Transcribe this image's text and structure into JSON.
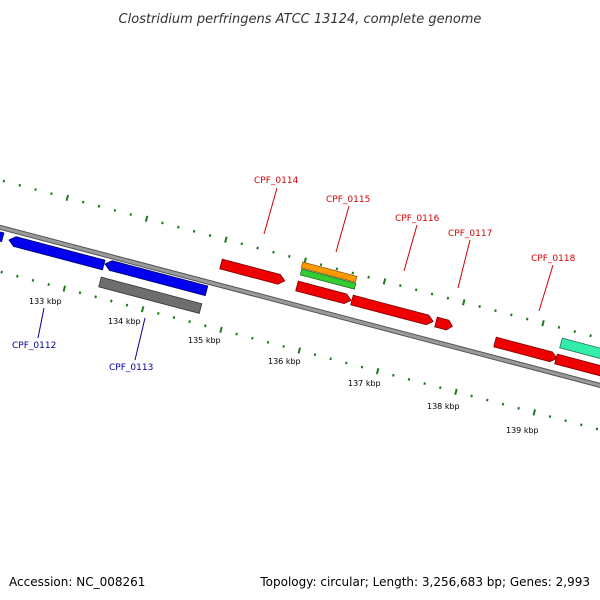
{
  "title": "Clostridium perfringens ATCC 13124, complete genome",
  "footer": {
    "accession": "Accession: NC_008261",
    "topology": "Topology: circular; Length: 3,256,683 bp; Genes: 2,993"
  },
  "colors": {
    "backbone": "#8c8c8c",
    "ticks": "#1f7a1f",
    "label_red": "#d40000",
    "label_blue": "#000099"
  },
  "scale_labels": [
    "133 kbp",
    "134 kbp",
    "135 kbp",
    "136 kbp",
    "137 kbp",
    "138 kbp",
    "139 kbp"
  ],
  "gene_labels": [
    {
      "text": "CPF_0112",
      "color": "blue"
    },
    {
      "text": "CPF_0113",
      "color": "blue"
    },
    {
      "text": "CPF_0114",
      "color": "red"
    },
    {
      "text": "CPF_0115",
      "color": "red"
    },
    {
      "text": "CPF_0116",
      "color": "red"
    },
    {
      "text": "CPF_0117",
      "color": "red"
    },
    {
      "text": "CPF_0118",
      "color": "red"
    }
  ]
}
